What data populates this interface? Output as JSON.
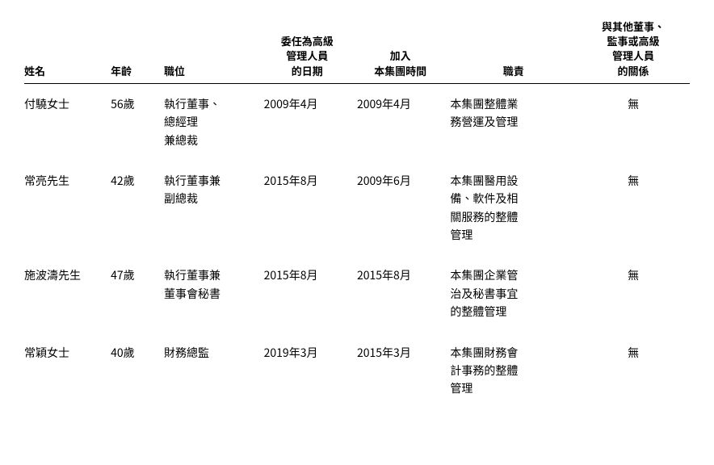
{
  "table": {
    "columns": [
      {
        "key": "name",
        "label": "姓名",
        "align": "left",
        "width": "13%"
      },
      {
        "key": "age",
        "label": "年齡",
        "align": "left",
        "width": "8%"
      },
      {
        "key": "position",
        "label": "職位",
        "align": "left",
        "width": "15%"
      },
      {
        "key": "appoint_date",
        "label": "委任為高級\n管理人員\n的日期",
        "align": "center",
        "width": "14%"
      },
      {
        "key": "join_date",
        "label": "加入\n本集團時間",
        "align": "center",
        "width": "14%"
      },
      {
        "key": "duty",
        "label": "職責",
        "align": "center",
        "width": "20%"
      },
      {
        "key": "relation",
        "label": "與其他董事、\n監事或高級\n管理人員\n的關係",
        "align": "center",
        "width": "16%"
      }
    ],
    "rows": [
      {
        "name": "付驍女士",
        "age": "56歲",
        "position": "執行董事、\n總經理\n兼總裁",
        "appoint_date": "2009年4月",
        "join_date": "2009年4月",
        "duty": "本集團整體業\n務營運及管理",
        "relation": "無"
      },
      {
        "name": "常亮先生",
        "age": "42歲",
        "position": "執行董事兼\n副總裁",
        "appoint_date": "2015年8月",
        "join_date": "2009年6月",
        "duty": "本集團醫用設\n備、軟件及相\n關服務的整體\n管理",
        "relation": "無"
      },
      {
        "name": "施波濤先生",
        "age": "47歲",
        "position": "執行董事兼\n董事會秘書",
        "appoint_date": "2015年8月",
        "join_date": "2015年8月",
        "duty": "本集團企業管\n治及秘書事宜\n的整體管理",
        "relation": "無"
      },
      {
        "name": "常穎女士",
        "age": "40歲",
        "position": "財務總監",
        "appoint_date": "2019年3月",
        "join_date": "2015年3月",
        "duty": "本集團財務會\n計事務的整體\n管理",
        "relation": "無"
      }
    ],
    "style": {
      "background_color": "#ffffff",
      "text_color": "#000000",
      "header_border_color": "#000000",
      "header_fontsize": 13,
      "cell_fontsize": 14,
      "line_height": 1.6,
      "font_weight_header": "bold",
      "font_weight_cell": "normal"
    }
  }
}
